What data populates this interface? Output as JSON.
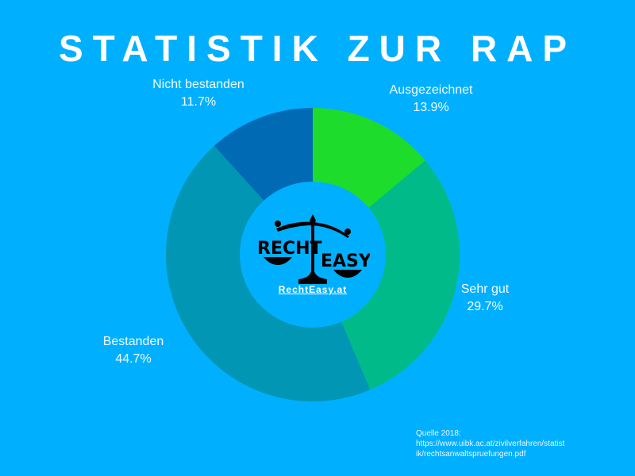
{
  "title": "STATISTIK ZUR RAP",
  "logo": {
    "left_word": "RECHT",
    "right_word": "EASY",
    "url": "RechtEasy.at"
  },
  "labels": [
    {
      "name": "Nicht bestanden",
      "value": "11.7%"
    },
    {
      "name": "Ausgezeichnet",
      "value": "13.9%"
    },
    {
      "name": "Sehr gut",
      "value": "29.7%"
    },
    {
      "name": "Bestanden",
      "value": "44.7%"
    }
  ],
  "source": {
    "line1": "Quelle 2018:",
    "line2": "https://www.uibk.ac.at/zivilverfahren/statist",
    "line3": "ik/rechtsanwaltspruefungen.pdf"
  },
  "colors": {
    "background": "#00b0ff",
    "ausgezeichnet": "#1ddc2c",
    "sehr_gut": "#00bb89",
    "bestanden": "#0096b4",
    "nicht_bestanden": "#006bb4"
  },
  "chart_data": {
    "type": "pie",
    "variant": "donut",
    "title": "STATISTIK ZUR RAP",
    "categories": [
      "Ausgezeichnet",
      "Sehr gut",
      "Bestanden",
      "Nicht bestanden"
    ],
    "values": [
      13.9,
      29.7,
      44.7,
      11.7
    ],
    "unit": "%",
    "start_angle": "12 o'clock, clockwise",
    "colors": [
      "#1ddc2c",
      "#00bb89",
      "#0096b4",
      "#006bb4"
    ],
    "legend": "none (direct labels)",
    "annotations": [
      "Quelle 2018: https://www.uibk.ac.at/zivilverfahren/statistik/rechtsanwaltspruefungen.pdf"
    ]
  }
}
